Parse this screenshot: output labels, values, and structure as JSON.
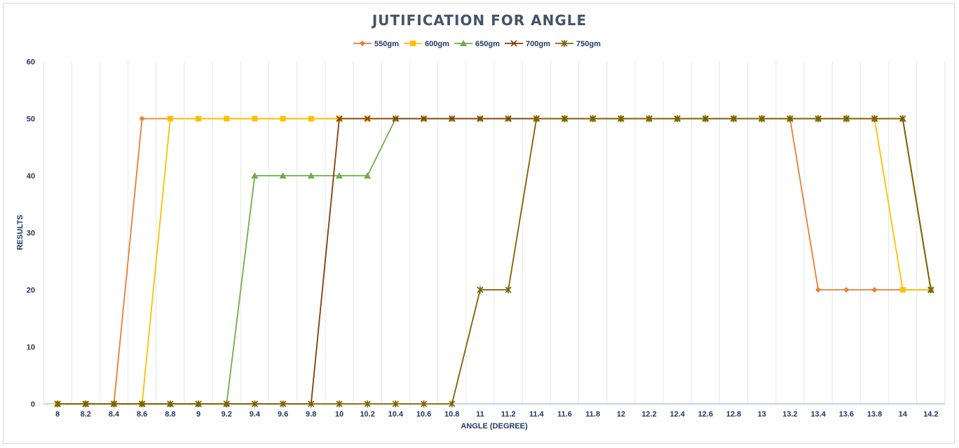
{
  "chart_data": {
    "type": "line",
    "title": "JUTIFICATION FOR ANGLE",
    "xlabel": "ANGLE (DEGREE)",
    "ylabel": "RESULTS",
    "ylim": [
      0,
      60
    ],
    "yticks": [
      "0",
      "10",
      "20",
      "30",
      "40",
      "50",
      "60"
    ],
    "grid": "vertical",
    "legend_position": "top",
    "categories": [
      "8",
      "8.2",
      "8.4",
      "8.6",
      "8.8",
      "9",
      "9.2",
      "9.4",
      "9.6",
      "9.8",
      "10",
      "10.2",
      "10.4",
      "10.6",
      "10.8",
      "11",
      "11.2",
      "11.4",
      "11.6",
      "11.8",
      "12",
      "12.2",
      "12.4",
      "12.6",
      "12.8",
      "13",
      "13.2",
      "13.4",
      "13.6",
      "13.8",
      "14",
      "14.2"
    ],
    "series": [
      {
        "name": "550gm",
        "color": "#ed7d31",
        "marker": "diamond",
        "values": [
          0,
          0,
          0,
          50,
          50,
          50,
          50,
          50,
          50,
          50,
          50,
          50,
          50,
          50,
          50,
          50,
          50,
          50,
          50,
          50,
          50,
          50,
          50,
          50,
          50,
          50,
          50,
          20,
          20,
          20,
          20,
          20
        ]
      },
      {
        "name": "600gm",
        "color": "#ffc000",
        "marker": "square",
        "values": [
          0,
          0,
          0,
          0,
          50,
          50,
          50,
          50,
          50,
          50,
          50,
          50,
          50,
          50,
          50,
          50,
          50,
          50,
          50,
          50,
          50,
          50,
          50,
          50,
          50,
          50,
          50,
          50,
          50,
          50,
          20,
          20
        ]
      },
      {
        "name": "650gm",
        "color": "#70ad47",
        "marker": "triangle",
        "values": [
          0,
          0,
          0,
          0,
          0,
          0,
          0,
          40,
          40,
          40,
          40,
          40,
          50,
          50,
          50,
          50,
          50,
          50,
          50,
          50,
          50,
          50,
          50,
          50,
          50,
          50,
          50,
          50,
          50,
          50,
          50,
          20
        ]
      },
      {
        "name": "700gm",
        "color": "#843c0c",
        "marker": "x",
        "values": [
          0,
          0,
          0,
          0,
          0,
          0,
          0,
          0,
          0,
          0,
          50,
          50,
          50,
          50,
          50,
          50,
          50,
          50,
          50,
          50,
          50,
          50,
          50,
          50,
          50,
          50,
          50,
          50,
          50,
          50,
          50,
          20
        ]
      },
      {
        "name": "750gm",
        "color": "#7f6000",
        "marker": "star",
        "values": [
          0,
          0,
          0,
          0,
          0,
          0,
          0,
          0,
          0,
          0,
          0,
          0,
          0,
          0,
          0,
          20,
          20,
          50,
          50,
          50,
          50,
          50,
          50,
          50,
          50,
          50,
          50,
          50,
          50,
          50,
          50,
          20
        ]
      }
    ]
  }
}
